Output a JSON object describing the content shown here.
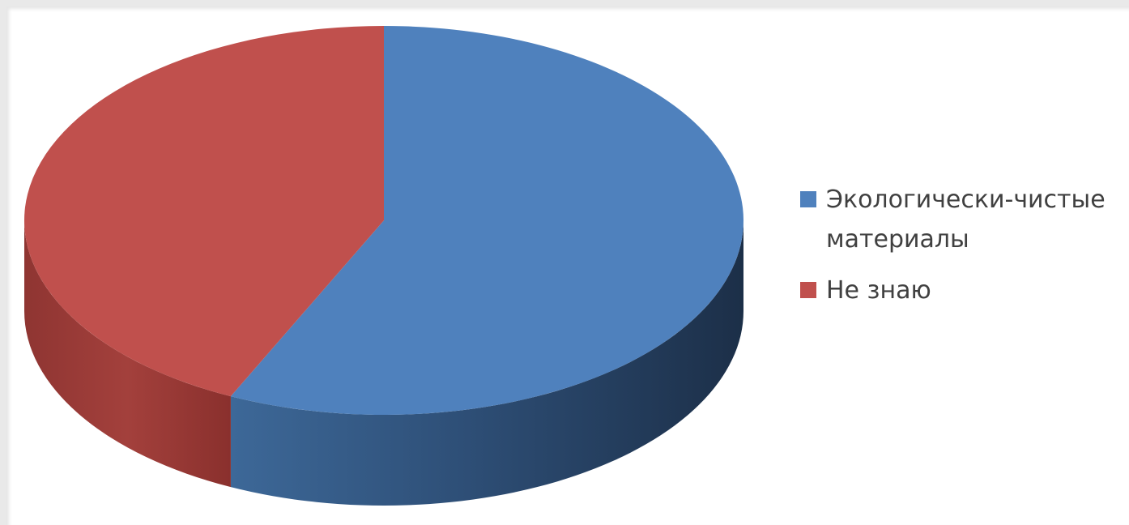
{
  "chart_data": {
    "type": "pie",
    "style": "3d",
    "title": "",
    "legend_position": "right",
    "series": [
      {
        "name": "Экологически-чистые материалы",
        "value": 57,
        "color": "#4f81bd"
      },
      {
        "name": "Не знаю",
        "value": 43,
        "color": "#c0504d"
      }
    ]
  },
  "legend": {
    "items": [
      {
        "line1": "Экологически-чистые",
        "line2": "материалы",
        "color": "#4f81bd"
      },
      {
        "line1": "Не знаю",
        "line2": "",
        "color": "#c0504d"
      }
    ]
  }
}
